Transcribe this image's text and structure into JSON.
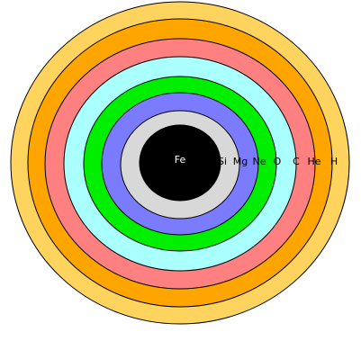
{
  "layers": [
    {
      "label": "H"
    },
    {
      "label": "He"
    },
    {
      "label": "C"
    },
    {
      "label": "O"
    },
    {
      "label": "Ne"
    },
    {
      "label": "Mg"
    },
    {
      "label": "Si"
    },
    {
      "label": "Fe"
    }
  ]
}
